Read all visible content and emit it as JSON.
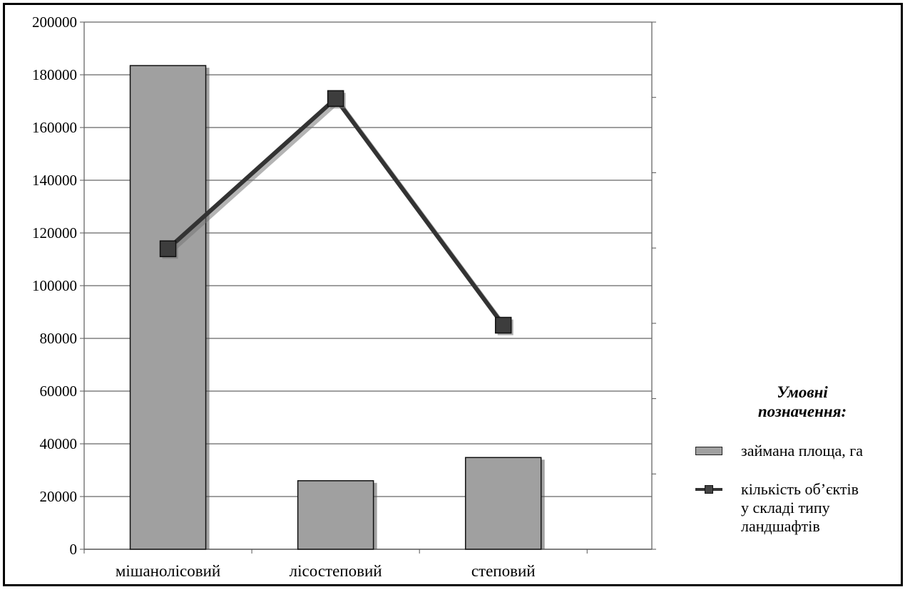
{
  "chart_data": {
    "type": "bar",
    "categories": [
      "мішанолісовий",
      "лісостеповий",
      "степовий"
    ],
    "ylim": [
      0,
      200000
    ],
    "yticks": [
      "0",
      "20000",
      "40000",
      "60000",
      "80000",
      "100000",
      "120000",
      "140000",
      "160000",
      "180000",
      "200000"
    ],
    "series": [
      {
        "name": "займана площа, га",
        "type": "bar",
        "axis": "left",
        "color": "#a0a0a0",
        "values": [
          183500,
          26000,
          34800
        ]
      },
      {
        "name": "кількість об’єктів у складі типу ландшафтів",
        "type": "line",
        "axis": "right",
        "color": "#333333",
        "values": [
          114000,
          171000,
          85000
        ]
      }
    ],
    "secondary_axis": {
      "ticks_labeled": false
    },
    "grid": true,
    "legend_position": "right",
    "title": "",
    "xlabel": "",
    "ylabel": ""
  },
  "legend": {
    "title_line1": "Умовні",
    "title_line2": "позначення:",
    "bar_label": "займана площа, га",
    "line_label_1": "кількість об’єктів",
    "line_label_2": "у складі типу",
    "line_label_3": "ландшафтів"
  }
}
